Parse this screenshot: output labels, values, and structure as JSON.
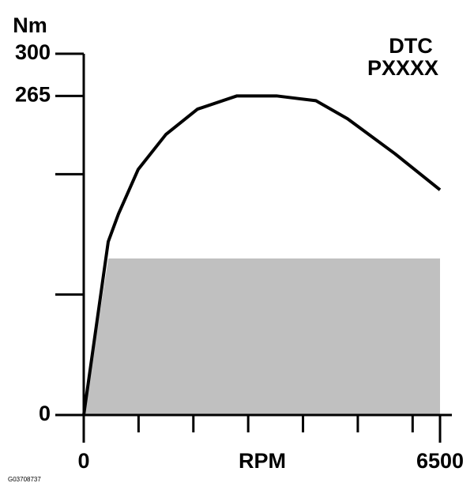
{
  "chart_data": {
    "type": "line",
    "y_label": "Nm",
    "x_label": "RPM",
    "annotation": [
      "DTC",
      "PXXXX"
    ],
    "figure_id": "G03708737",
    "xlim": [
      0,
      6500
    ],
    "xticks": [
      0,
      6500
    ],
    "minor_xticks": [
      1000,
      2000,
      3000,
      4000,
      5000,
      6000
    ],
    "ylim": [
      0,
      300
    ],
    "yticks": [
      0,
      265,
      300
    ],
    "minor_yticks": [
      100,
      200
    ],
    "series": [
      {
        "kind": "area",
        "color": "#c0c0c0",
        "x": [
          0,
          450,
          6500
        ],
        "values": [
          0,
          130,
          130
        ]
      },
      {
        "kind": "line",
        "color": "#000000",
        "x": [
          0,
          447,
          634,
          994,
          1499,
          2075,
          2795,
          3516,
          4236,
          4813,
          5677,
          6500
        ],
        "values": [
          0,
          144,
          167,
          204,
          233,
          254,
          265,
          265,
          261,
          246,
          217,
          187
        ]
      }
    ]
  }
}
